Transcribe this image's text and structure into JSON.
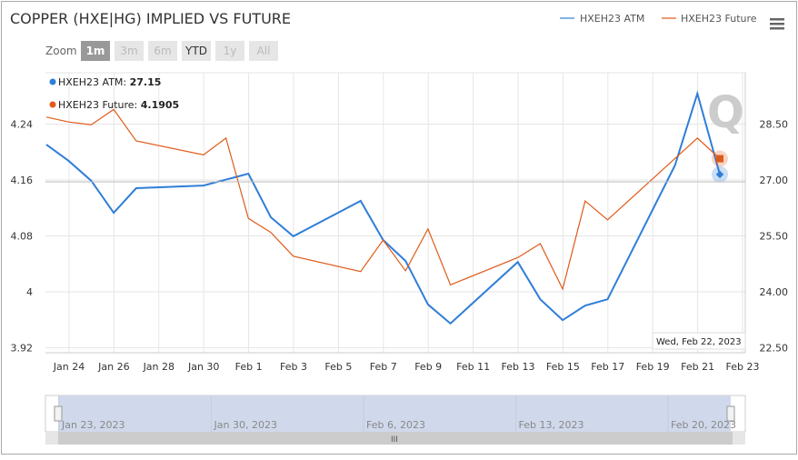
{
  "chart_data": {
    "type": "line",
    "title": "COPPER (HXE|HG) IMPLIED VS FUTURE",
    "zoom": {
      "label": "Zoom",
      "buttons": [
        "1m",
        "3m",
        "6m",
        "YTD",
        "1y",
        "All"
      ],
      "active": "1m",
      "enabled": [
        "1m",
        "YTD"
      ]
    },
    "legend": {
      "placement": "top-right",
      "items": [
        "HXEH23 ATM",
        "HXEH23 Future"
      ]
    },
    "colors": {
      "atm": "#2f7ed8",
      "future": "#e05a1a"
    },
    "x_ticks": [
      "Jan 24",
      "Jan 26",
      "Jan 28",
      "Jan 30",
      "Feb 1",
      "Feb 3",
      "Feb 5",
      "Feb 7",
      "Feb 9",
      "Feb 11",
      "Feb 13",
      "Feb 15",
      "Feb 17",
      "Feb 19",
      "Feb 21",
      "Feb 23"
    ],
    "y_left": {
      "ticks": [
        "4.24",
        "4.16",
        "4.08",
        "4",
        "3.92"
      ],
      "range": [
        3.92,
        4.24
      ]
    },
    "y_right": {
      "ticks": [
        "28.50",
        "27.00",
        "25.50",
        "24.00",
        "22.50"
      ],
      "range": [
        22.5,
        28.5
      ]
    },
    "series": [
      {
        "name": "HXEH23 ATM",
        "axis": "right",
        "x": [
          "2023-01-23",
          "2023-01-24",
          "2023-01-25",
          "2023-01-26",
          "2023-01-27",
          "2023-01-30",
          "2023-02-01",
          "2023-02-02",
          "2023-02-03",
          "2023-02-06",
          "2023-02-07",
          "2023-02-08",
          "2023-02-09",
          "2023-02-10",
          "2023-02-13",
          "2023-02-14",
          "2023-02-15",
          "2023-02-16",
          "2023-02-17",
          "2023-02-20",
          "2023-02-21",
          "2023-02-22"
        ],
        "values": [
          27.95,
          27.51,
          26.98,
          26.12,
          26.78,
          26.85,
          27.17,
          26.0,
          25.49,
          26.44,
          25.39,
          24.83,
          23.66,
          23.15,
          24.8,
          23.8,
          23.24,
          23.63,
          23.8,
          27.39,
          29.32,
          27.15
        ]
      },
      {
        "name": "HXEH23 Future",
        "axis": "left",
        "x": [
          "2023-01-23",
          "2023-01-24",
          "2023-01-25",
          "2023-01-26",
          "2023-01-27",
          "2023-01-30",
          "2023-01-31",
          "2023-02-01",
          "2023-02-02",
          "2023-02-03",
          "2023-02-06",
          "2023-02-07",
          "2023-02-08",
          "2023-02-09",
          "2023-02-10",
          "2023-02-13",
          "2023-02-14",
          "2023-02-15",
          "2023-02-16",
          "2023-02-17",
          "2023-02-21",
          "2023-02-22"
        ],
        "values": [
          4.25,
          4.243,
          4.239,
          4.261,
          4.216,
          4.196,
          4.22,
          4.105,
          4.085,
          4.051,
          4.029,
          4.074,
          4.03,
          4.09,
          4.01,
          4.049,
          4.069,
          4.004,
          4.13,
          4.103,
          4.22,
          4.1905
        ]
      }
    ],
    "tooltip": {
      "date": "Wed, Feb 22, 2023",
      "atm_label": "HXEH23 ATM: ",
      "atm_value": "27.15",
      "future_label": "HXEH23 Future: ",
      "future_value": "4.1905"
    },
    "navigator": {
      "labels": [
        "Jan 23, 2023",
        "Jan 30, 2023",
        "Feb 6, 2023",
        "Feb 13, 2023",
        "Feb 20, 2023"
      ]
    },
    "grid": true
  }
}
